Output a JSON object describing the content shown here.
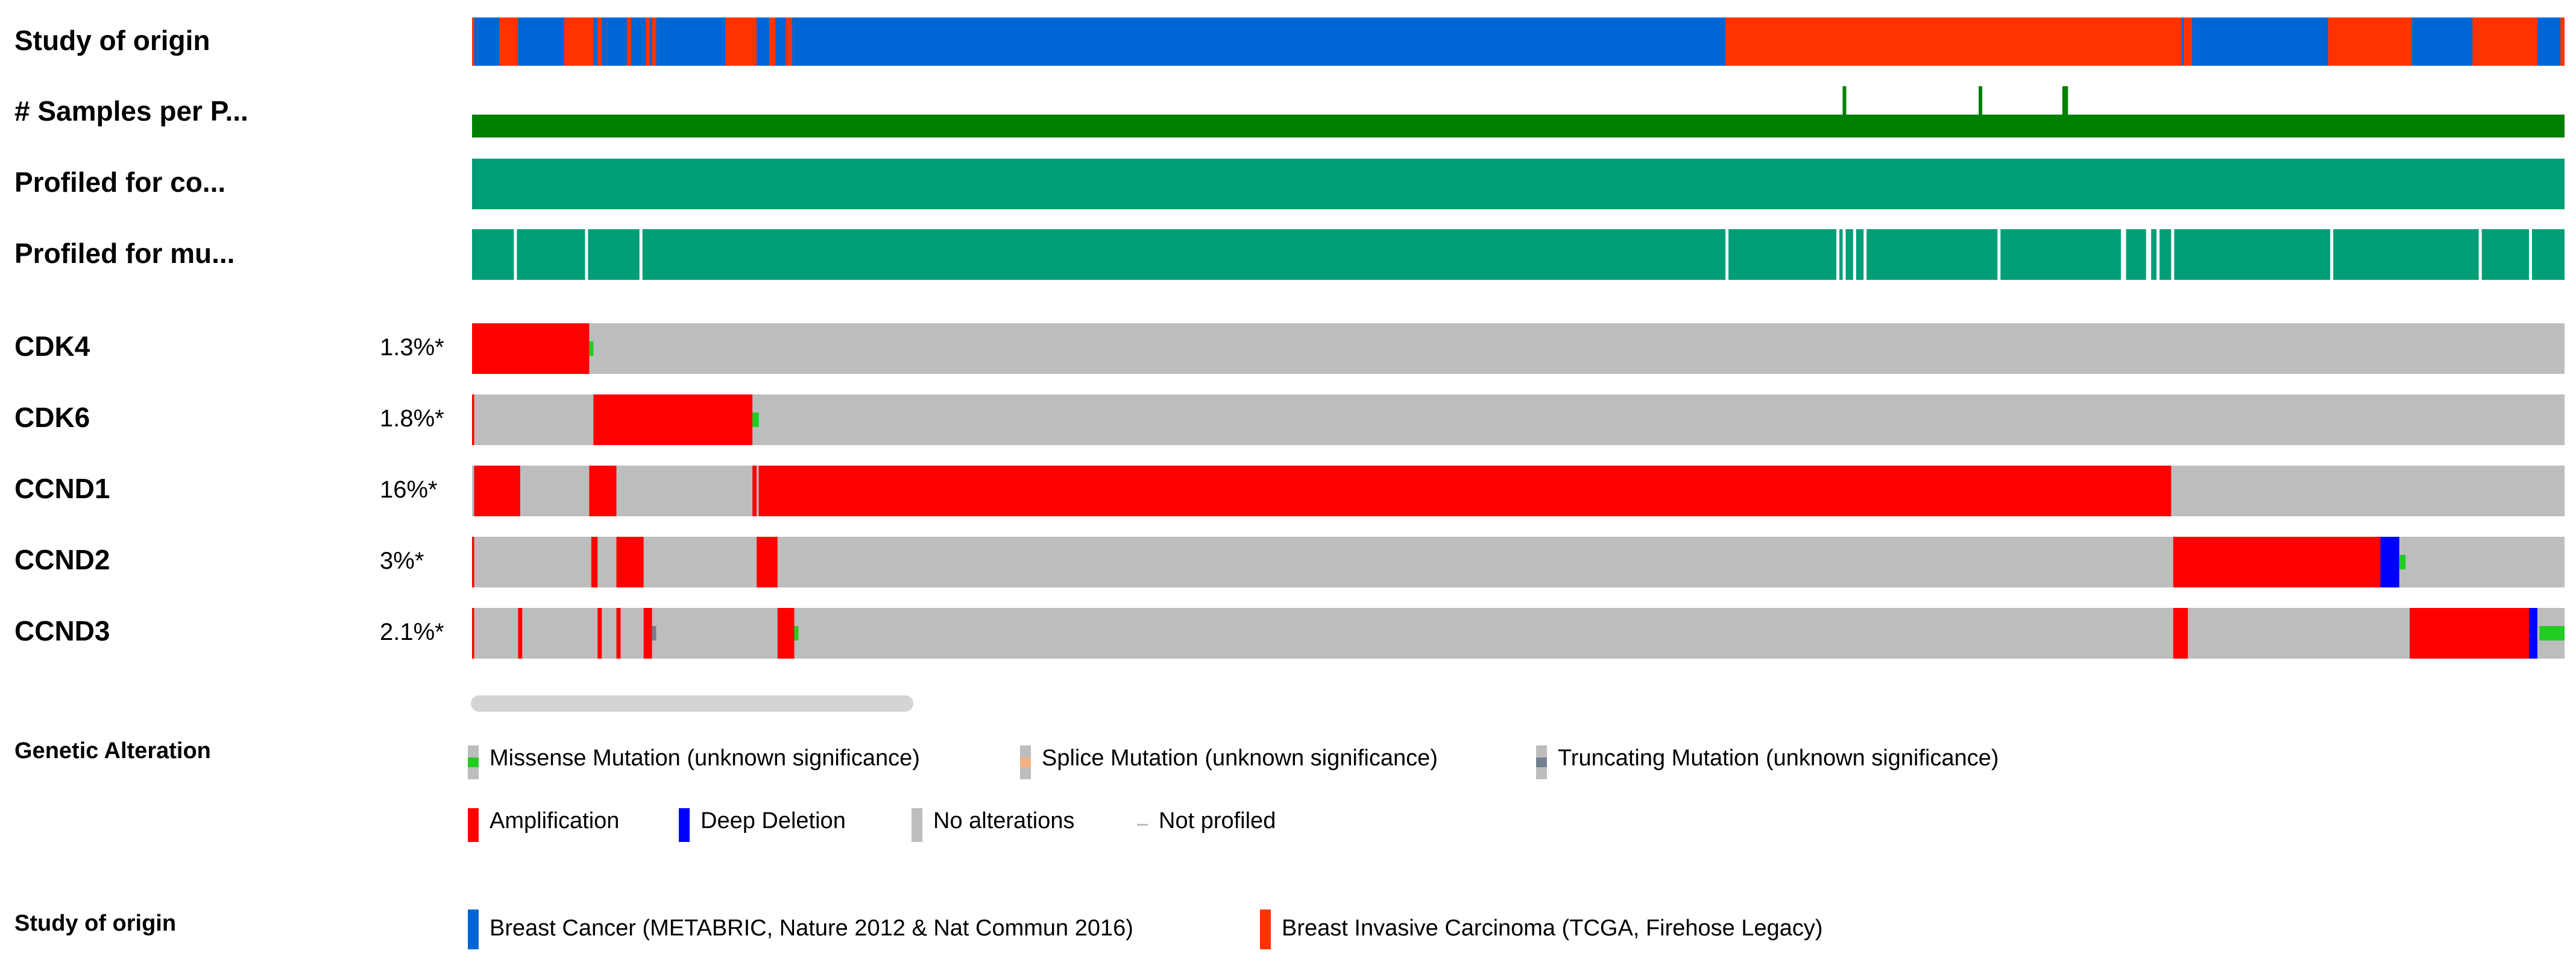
{
  "tracks": {
    "study_of_origin": "Study of origin",
    "samples_per_patient": "# Samples per P...",
    "profiled_cna": "Profiled for co...",
    "profiled_mut": "Profiled for mu..."
  },
  "genes": [
    {
      "name": "CDK4",
      "percent": "1.3%*"
    },
    {
      "name": "CDK6",
      "percent": "1.8%*"
    },
    {
      "name": "CCND1",
      "percent": "16%*"
    },
    {
      "name": "CCND2",
      "percent": "3%*"
    },
    {
      "name": "CCND3",
      "percent": "2.1%*"
    }
  ],
  "legend": {
    "genetic_title": "Genetic Alteration",
    "missense": "Missense Mutation (unknown significance)",
    "splice": "Splice Mutation (unknown significance)",
    "truncating": "Truncating Mutation (unknown significance)",
    "amplification": "Amplification",
    "deep_deletion": "Deep Deletion",
    "no_alterations": "No alterations",
    "not_profiled": "Not profiled",
    "study_title": "Study of origin",
    "study_metabric": "Breast Cancer (METABRIC, Nature 2012 & Nat Commun 2016)",
    "study_tcga": "Breast Invasive Carcinoma (TCGA, Firehose Legacy)"
  },
  "colors": {
    "metabric": "#0066d6",
    "tcga": "#ff3300",
    "samples": "#008000",
    "profiled": "#009e77",
    "no_alteration": "#bdbdbd",
    "amplification": "#ff0000",
    "deep_deletion": "#0000ff",
    "missense": "#22cc22",
    "splice": "#f4b183",
    "truncating": "#708090"
  },
  "chart_data": {
    "type": "oncoprint",
    "x_range": [
      0,
      1000
    ],
    "study_of_origin": {
      "default": "metabric",
      "segments": [
        [
          0,
          1,
          "tcga"
        ],
        [
          13,
          22,
          "tcga"
        ],
        [
          44,
          58,
          "tcga"
        ],
        [
          60,
          62,
          "tcga"
        ],
        [
          74,
          76,
          "tcga"
        ],
        [
          83,
          85,
          "tcga"
        ],
        [
          86,
          88,
          "tcga"
        ],
        [
          121,
          136,
          "tcga"
        ],
        [
          142,
          145,
          "tcga"
        ],
        [
          150,
          153,
          "tcga"
        ],
        [
          599,
          817,
          "tcga"
        ],
        [
          818,
          822,
          "tcga"
        ],
        [
          887,
          927,
          "tcga"
        ],
        [
          956,
          987,
          "tcga"
        ],
        [
          998,
          1000,
          "tcga"
        ]
      ]
    },
    "samples_per_patient": {
      "base": 1,
      "two_sample_positions": [
        655,
        720,
        760,
        761
      ]
    },
    "profiled_cna": {
      "gaps": []
    },
    "profiled_mut": {
      "gaps": [
        20,
        54,
        80,
        599,
        652,
        655,
        660,
        665,
        729,
        788,
        789,
        800,
        801,
        805,
        812,
        888,
        959,
        983
      ]
    },
    "genes": [
      {
        "name": "CDK4",
        "alterations": [
          {
            "type": "amplification",
            "start": 0,
            "end": 56
          },
          {
            "type": "missense",
            "start": 56,
            "end": 58
          }
        ]
      },
      {
        "name": "CDK6",
        "alterations": [
          {
            "type": "amplification",
            "start": 0,
            "end": 1
          },
          {
            "type": "amplification",
            "start": 58,
            "end": 134
          },
          {
            "type": "missense",
            "start": 134,
            "end": 137
          }
        ]
      },
      {
        "name": "CCND1",
        "alterations": [
          {
            "type": "amplification",
            "start": 1,
            "end": 23
          },
          {
            "type": "amplification",
            "start": 56,
            "end": 69
          },
          {
            "type": "amplification",
            "start": 134,
            "end": 136
          },
          {
            "type": "amplification",
            "start": 137,
            "end": 812
          }
        ]
      },
      {
        "name": "CCND2",
        "alterations": [
          {
            "type": "amplification",
            "start": 0,
            "end": 1
          },
          {
            "type": "amplification",
            "start": 57,
            "end": 60
          },
          {
            "type": "amplification",
            "start": 69,
            "end": 82
          },
          {
            "type": "amplification",
            "start": 136,
            "end": 146
          },
          {
            "type": "amplification",
            "start": 813,
            "end": 912
          },
          {
            "type": "deep_deletion",
            "start": 912,
            "end": 921
          },
          {
            "type": "missense",
            "start": 921,
            "end": 924
          }
        ]
      },
      {
        "name": "CCND3",
        "alterations": [
          {
            "type": "amplification",
            "start": 0,
            "end": 1
          },
          {
            "type": "amplification",
            "start": 22,
            "end": 24
          },
          {
            "type": "amplification",
            "start": 60,
            "end": 62
          },
          {
            "type": "amplification",
            "start": 69,
            "end": 71
          },
          {
            "type": "amplification",
            "start": 82,
            "end": 86
          },
          {
            "type": "truncating",
            "start": 86,
            "end": 88
          },
          {
            "type": "amplification",
            "start": 146,
            "end": 154
          },
          {
            "type": "missense",
            "start": 154,
            "end": 156
          },
          {
            "type": "amplification",
            "start": 813,
            "end": 820
          },
          {
            "type": "amplification",
            "start": 926,
            "end": 983
          },
          {
            "type": "deep_deletion",
            "start": 983,
            "end": 987
          },
          {
            "type": "missense",
            "start": 988,
            "end": 1000
          }
        ]
      }
    ]
  }
}
